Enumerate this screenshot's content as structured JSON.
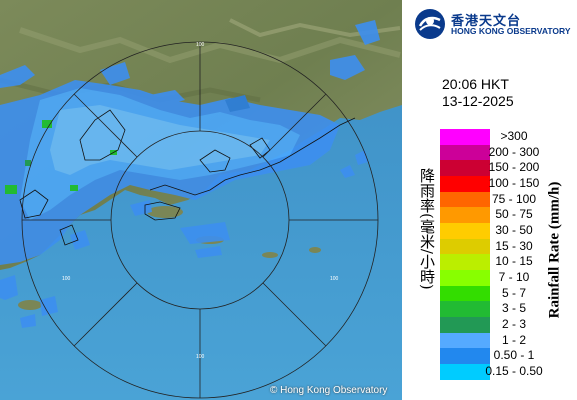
{
  "header": {
    "org_chinese": "香港天文台",
    "org_english": "HONG KONG OBSERVATORY",
    "logo_icon": "hko-logo-icon"
  },
  "timestamp": {
    "time": "20:06 HKT",
    "date": "13-12-2025"
  },
  "legend": {
    "title_chinese": "降雨率(毫米/小時)",
    "title_english": "Rainfall Rate (mm/h)",
    "items": [
      {
        "label": ">300",
        "color": "#ff00ff"
      },
      {
        "label": "200 - 300",
        "color": "#cc0099"
      },
      {
        "label": "150 - 200",
        "color": "#cc0033"
      },
      {
        "label": "100 - 150",
        "color": "#ff0000"
      },
      {
        "label": "75 - 100",
        "color": "#ff6600"
      },
      {
        "label": "50 - 75",
        "color": "#ff9900"
      },
      {
        "label": "30 - 50",
        "color": "#ffcc00"
      },
      {
        "label": "15 - 30",
        "color": "#ddcc00"
      },
      {
        "label": "10 - 15",
        "color": "#bbee00"
      },
      {
        "label": "7 - 10",
        "color": "#88ff00"
      },
      {
        "label": "5 - 7",
        "color": "#33dd00"
      },
      {
        "label": "3 - 5",
        "color": "#22bb33"
      },
      {
        "label": "2 - 3",
        "color": "#229955"
      },
      {
        "label": "1 - 2",
        "color": "#55aaff"
      },
      {
        "label": "0.50 - 1",
        "color": "#2288ee"
      },
      {
        "label": "0.15 - 0.50",
        "color": "#00ccff"
      }
    ]
  },
  "map": {
    "range_rings_km": [
      "100",
      "100",
      "100",
      "100"
    ],
    "copyright": "© Hong Kong Observatory"
  }
}
